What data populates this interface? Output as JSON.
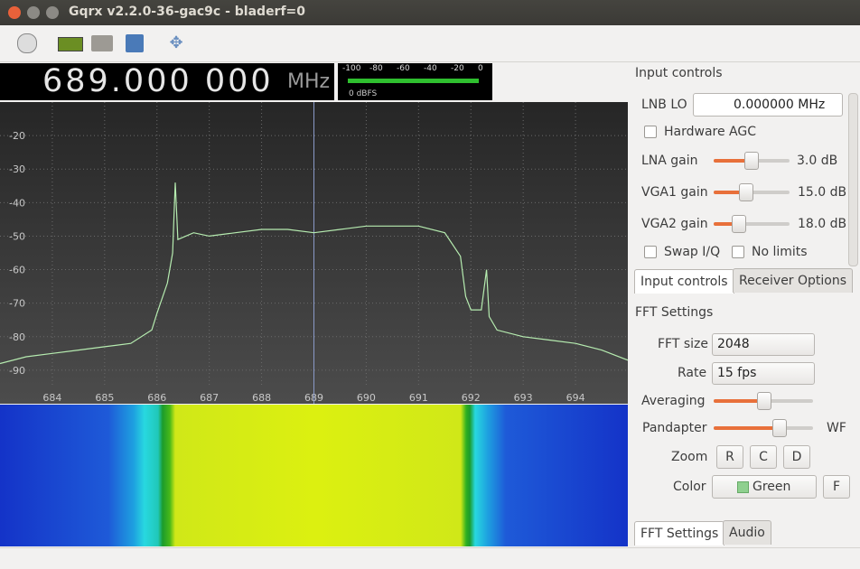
{
  "window": {
    "title": "Gqrx v2.2.0-36-gac9c - bladerf=0"
  },
  "frequency": {
    "value": "689.000 000",
    "unit": "MHz"
  },
  "meter": {
    "ticks": [
      "-100",
      "-80",
      "-60",
      "-40",
      "-20",
      "0"
    ],
    "label": "0 dBFS"
  },
  "chart_data": {
    "type": "line",
    "color": "#b6ecb0",
    "x": [
      683.0,
      683.5,
      684.0,
      684.5,
      685.0,
      685.5,
      685.9,
      686.0,
      686.2,
      686.3,
      686.35,
      686.4,
      686.7,
      687.0,
      687.5,
      688.0,
      688.5,
      689.0,
      689.5,
      690.0,
      690.5,
      691.0,
      691.5,
      691.8,
      691.9,
      692.0,
      692.2,
      692.3,
      692.35,
      692.5,
      693.0,
      693.5,
      694.0,
      694.5,
      695.0
    ],
    "values": [
      -88,
      -86,
      -85,
      -84,
      -83,
      -82,
      -78,
      -73,
      -64,
      -55,
      -34,
      -51,
      -49,
      -50,
      -49,
      -48,
      -48,
      -49,
      -48,
      -47,
      -47,
      -47,
      -49,
      -56,
      -68,
      -72,
      -72,
      -60,
      -74,
      -78,
      -80,
      -81,
      -82,
      -84,
      -87
    ],
    "xlim": [
      683,
      695
    ],
    "ylim": [
      -100,
      -10
    ],
    "xticks": [
      684,
      685,
      686,
      687,
      688,
      689,
      690,
      691,
      692,
      693,
      694
    ],
    "yticks": [
      -20,
      -30,
      -40,
      -50,
      -60,
      -70,
      -80,
      -90
    ],
    "grid": true
  },
  "input_controls": {
    "title": "Input controls",
    "lnb_label": "LNB LO",
    "lnb_value": "0.000000 MHz",
    "agc": "Hardware AGC",
    "lna_label": "LNA gain",
    "lna_value": "3.0 dB",
    "vga1_label": "VGA1 gain",
    "vga1_value": "15.0 dB",
    "vga2_label": "VGA2 gain",
    "vga2_value": "18.0 dB",
    "swap": "Swap I/Q",
    "nolimits": "No limits",
    "tabs": [
      "Input controls",
      "Receiver Options"
    ]
  },
  "fft_settings": {
    "title": "FFT Settings",
    "size_label": "FFT size",
    "size_value": "2048",
    "rate_label": "Rate",
    "rate_value": "15 fps",
    "averaging": "Averaging",
    "pandapter": "Pandapter",
    "wf": "WF",
    "zoom": "Zoom",
    "zoom_buttons": [
      "R",
      "C",
      "D"
    ],
    "color": "Color",
    "color_value": "Green",
    "f_button": "F",
    "tabs": [
      "FFT Settings",
      "Audio"
    ]
  }
}
